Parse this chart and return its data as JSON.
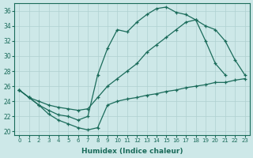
{
  "xlabel": "Humidex (Indice chaleur)",
  "xlim": [
    -0.5,
    23.5
  ],
  "ylim": [
    19.5,
    37
  ],
  "yticks": [
    20,
    22,
    24,
    26,
    28,
    30,
    32,
    34,
    36
  ],
  "xticks": [
    0,
    1,
    2,
    3,
    4,
    5,
    6,
    7,
    8,
    9,
    10,
    11,
    12,
    13,
    14,
    15,
    16,
    17,
    18,
    19,
    20,
    21,
    22,
    23
  ],
  "line_color": "#1a6b5a",
  "bg_color": "#cde8e8",
  "grid_color": "#b0d0d0",
  "line1_x": [
    0,
    1,
    2,
    3,
    4,
    5,
    6,
    7,
    8,
    9,
    10,
    11,
    12,
    13,
    14,
    15,
    16,
    17,
    18,
    19,
    20,
    21
  ],
  "line1_y": [
    25.5,
    24.5,
    23.5,
    22.8,
    22.2,
    22.0,
    21.5,
    22.0,
    27.5,
    31.0,
    33.5,
    33.2,
    34.5,
    35.5,
    36.3,
    36.5,
    35.8,
    35.5,
    34.8,
    32.0,
    29.0,
    27.5
  ],
  "line2_x": [
    0,
    1,
    2,
    3,
    4,
    5,
    6,
    7,
    8,
    9,
    10,
    11,
    12,
    13,
    14,
    15,
    16,
    17,
    18,
    19,
    20,
    21,
    22,
    23
  ],
  "line2_y": [
    25.5,
    24.5,
    24.0,
    23.5,
    23.2,
    23.0,
    22.8,
    23.0,
    24.5,
    26.0,
    27.0,
    28.0,
    29.0,
    30.5,
    31.5,
    32.5,
    33.5,
    34.5,
    34.8,
    34.0,
    33.5,
    32.0,
    29.5,
    27.5
  ],
  "line3_x": [
    0,
    1,
    2,
    3,
    4,
    5,
    6,
    7,
    8,
    9,
    10,
    11,
    12,
    13,
    14,
    15,
    16,
    17,
    18,
    19,
    20,
    21,
    22,
    23
  ],
  "line3_y": [
    25.5,
    24.5,
    23.5,
    22.3,
    21.5,
    21.0,
    20.5,
    20.2,
    20.5,
    23.5,
    24.0,
    24.3,
    24.5,
    24.8,
    25.0,
    25.3,
    25.5,
    25.8,
    26.0,
    26.2,
    26.5,
    26.5,
    26.8,
    27.0
  ]
}
